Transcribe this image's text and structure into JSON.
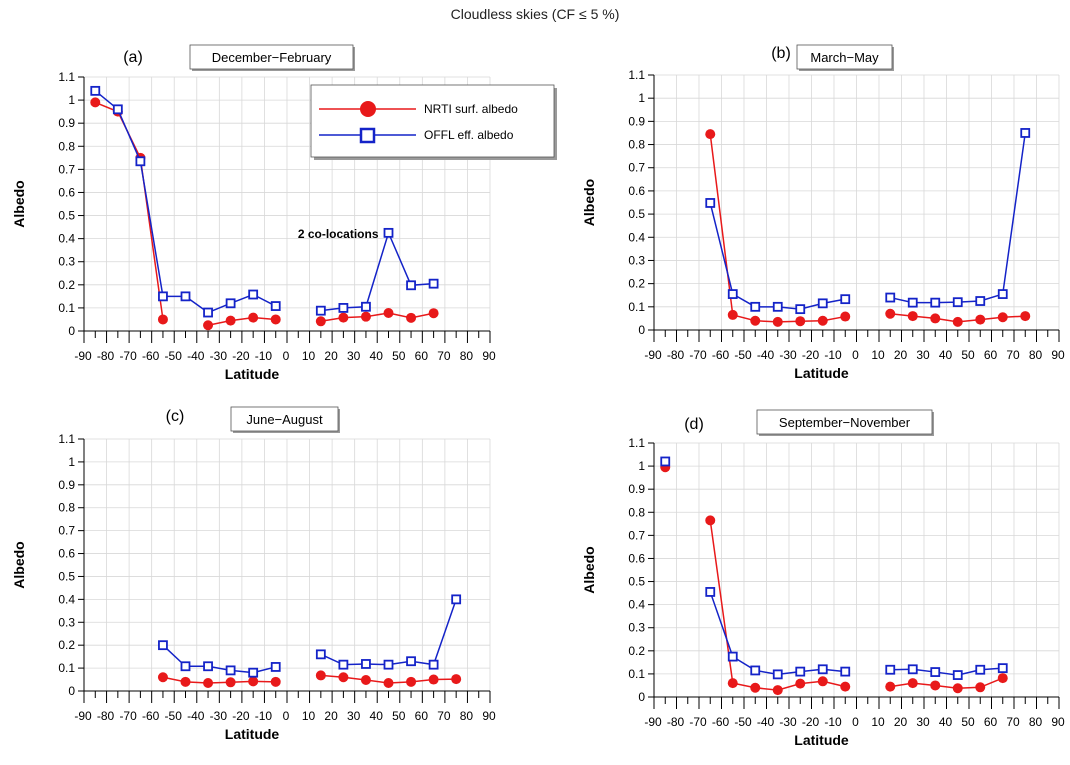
{
  "title": "Cloudless skies (CF ≤ 5 %)",
  "colors": {
    "nrti": "#e8191a",
    "offl": "#1423c8"
  },
  "chart_data": [
    {
      "type": "line",
      "panel_label": "(a)",
      "season": "December−February",
      "xlabel": "Latitude",
      "ylabel": "Albedo",
      "xlim": [
        -90,
        90
      ],
      "ylim": [
        0,
        1.1
      ],
      "xticks": [
        -90,
        -80,
        -70,
        -60,
        -50,
        -40,
        -30,
        -20,
        -10,
        0,
        10,
        20,
        30,
        40,
        50,
        60,
        70,
        80,
        90
      ],
      "yticks": [
        0,
        0.1,
        0.2,
        0.3,
        0.4,
        0.5,
        0.6,
        0.7,
        0.8,
        0.9,
        1,
        1.1
      ],
      "grid": true,
      "legend": {
        "placement": "top-right",
        "entries": [
          "NRTI surf. albedo",
          "OFFL eff. albedo"
        ]
      },
      "annotation": {
        "text": "2 co-locations",
        "x": 45,
        "y": 0.42
      },
      "series": [
        {
          "name": "NRTI surf. albedo",
          "segments": [
            [
              [
                -85,
                0.99
              ],
              [
                -75,
                0.95
              ],
              [
                -65,
                0.75
              ],
              [
                -55,
                0.05
              ]
            ],
            [
              [
                -35,
                0.025
              ],
              [
                -25,
                0.045
              ],
              [
                -15,
                0.058
              ],
              [
                -5,
                0.05
              ]
            ],
            [
              [
                15,
                0.042
              ],
              [
                25,
                0.058
              ],
              [
                35,
                0.062
              ],
              [
                45,
                0.078
              ],
              [
                55,
                0.057
              ],
              [
                65,
                0.077
              ]
            ]
          ]
        },
        {
          "name": "OFFL eff. albedo",
          "segments": [
            [
              [
                -85,
                1.04
              ],
              [
                -75,
                0.96
              ],
              [
                -65,
                0.735
              ],
              [
                -55,
                0.15
              ],
              [
                -45,
                0.15
              ],
              [
                -35,
                0.08
              ],
              [
                -25,
                0.12
              ],
              [
                -15,
                0.158
              ],
              [
                -5,
                0.108
              ]
            ],
            [
              [
                15,
                0.088
              ],
              [
                25,
                0.1
              ],
              [
                35,
                0.105
              ],
              [
                45,
                0.425
              ],
              [
                55,
                0.198
              ],
              [
                65,
                0.205
              ]
            ]
          ]
        }
      ]
    },
    {
      "type": "line",
      "panel_label": "(b)",
      "season": "March−May",
      "xlabel": "Latitude",
      "ylabel": "Albedo",
      "xlim": [
        -90,
        90
      ],
      "ylim": [
        0,
        1.1
      ],
      "xticks": [
        -90,
        -80,
        -70,
        -60,
        -50,
        -40,
        -30,
        -20,
        -10,
        0,
        10,
        20,
        30,
        40,
        50,
        60,
        70,
        80,
        90
      ],
      "yticks": [
        0,
        0.1,
        0.2,
        0.3,
        0.4,
        0.5,
        0.6,
        0.7,
        0.8,
        0.9,
        1,
        1.1
      ],
      "grid": true,
      "series": [
        {
          "name": "NRTI surf. albedo",
          "segments": [
            [
              [
                -65,
                0.845
              ],
              [
                -55,
                0.065
              ],
              [
                -45,
                0.04
              ],
              [
                -35,
                0.035
              ],
              [
                -25,
                0.038
              ],
              [
                -15,
                0.04
              ],
              [
                -5,
                0.058
              ]
            ],
            [
              [
                15,
                0.07
              ],
              [
                25,
                0.06
              ],
              [
                35,
                0.05
              ],
              [
                45,
                0.035
              ],
              [
                55,
                0.045
              ],
              [
                65,
                0.055
              ],
              [
                75,
                0.06
              ]
            ]
          ]
        },
        {
          "name": "OFFL eff. albedo",
          "segments": [
            [
              [
                -65,
                0.548
              ],
              [
                -55,
                0.155
              ],
              [
                -45,
                0.1
              ],
              [
                -35,
                0.1
              ],
              [
                -25,
                0.09
              ],
              [
                -15,
                0.115
              ],
              [
                -5,
                0.133
              ]
            ],
            [
              [
                15,
                0.14
              ],
              [
                25,
                0.118
              ],
              [
                35,
                0.118
              ],
              [
                45,
                0.12
              ],
              [
                55,
                0.125
              ],
              [
                65,
                0.155
              ],
              [
                75,
                0.85
              ]
            ]
          ]
        }
      ]
    },
    {
      "type": "line",
      "panel_label": "(c)",
      "season": "June−August",
      "xlabel": "Latitude",
      "ylabel": "Albedo",
      "xlim": [
        -90,
        90
      ],
      "ylim": [
        0,
        1.1
      ],
      "xticks": [
        -90,
        -80,
        -70,
        -60,
        -50,
        -40,
        -30,
        -20,
        -10,
        0,
        10,
        20,
        30,
        40,
        50,
        60,
        70,
        80,
        90
      ],
      "yticks": [
        0,
        0.1,
        0.2,
        0.3,
        0.4,
        0.5,
        0.6,
        0.7,
        0.8,
        0.9,
        1,
        1.1
      ],
      "grid": true,
      "series": [
        {
          "name": "NRTI surf. albedo",
          "segments": [
            [
              [
                -55,
                0.06
              ],
              [
                -45,
                0.04
              ],
              [
                -35,
                0.035
              ],
              [
                -25,
                0.038
              ],
              [
                -15,
                0.042
              ],
              [
                -5,
                0.04
              ]
            ],
            [
              [
                15,
                0.068
              ],
              [
                25,
                0.06
              ],
              [
                35,
                0.048
              ],
              [
                45,
                0.035
              ],
              [
                55,
                0.04
              ],
              [
                65,
                0.05
              ],
              [
                75,
                0.052
              ]
            ]
          ]
        },
        {
          "name": "OFFL eff. albedo",
          "segments": [
            [
              [
                -55,
                0.2
              ],
              [
                -45,
                0.108
              ],
              [
                -35,
                0.108
              ],
              [
                -25,
                0.09
              ],
              [
                -15,
                0.08
              ],
              [
                -5,
                0.105
              ]
            ],
            [
              [
                15,
                0.16
              ],
              [
                25,
                0.115
              ],
              [
                35,
                0.118
              ],
              [
                45,
                0.115
              ],
              [
                55,
                0.13
              ],
              [
                65,
                0.115
              ],
              [
                75,
                0.4
              ]
            ]
          ]
        }
      ]
    },
    {
      "type": "line",
      "panel_label": "(d)",
      "season": "September−November",
      "xlabel": "Latitude",
      "ylabel": "Albedo",
      "xlim": [
        -90,
        90
      ],
      "ylim": [
        0,
        1.1
      ],
      "xticks": [
        -90,
        -80,
        -70,
        -60,
        -50,
        -40,
        -30,
        -20,
        -10,
        0,
        10,
        20,
        30,
        40,
        50,
        60,
        70,
        80,
        90
      ],
      "yticks": [
        0,
        0.1,
        0.2,
        0.3,
        0.4,
        0.5,
        0.6,
        0.7,
        0.8,
        0.9,
        1,
        1.1
      ],
      "grid": true,
      "series": [
        {
          "name": "NRTI surf. albedo",
          "segments": [
            [
              [
                -85,
                0.995
              ]
            ],
            [
              [
                -65,
                0.765
              ],
              [
                -55,
                0.06
              ],
              [
                -45,
                0.04
              ],
              [
                -35,
                0.03
              ],
              [
                -25,
                0.058
              ],
              [
                -15,
                0.068
              ],
              [
                -5,
                0.045
              ]
            ],
            [
              [
                15,
                0.045
              ],
              [
                25,
                0.06
              ],
              [
                35,
                0.05
              ],
              [
                45,
                0.038
              ],
              [
                55,
                0.042
              ],
              [
                65,
                0.082
              ]
            ]
          ]
        },
        {
          "name": "OFFL eff. albedo",
          "segments": [
            [
              [
                -85,
                1.02
              ]
            ],
            [
              [
                -65,
                0.455
              ],
              [
                -55,
                0.175
              ],
              [
                -45,
                0.115
              ],
              [
                -35,
                0.098
              ],
              [
                -25,
                0.11
              ],
              [
                -15,
                0.12
              ],
              [
                -5,
                0.11
              ]
            ],
            [
              [
                15,
                0.118
              ],
              [
                25,
                0.12
              ],
              [
                35,
                0.108
              ],
              [
                45,
                0.095
              ],
              [
                55,
                0.118
              ],
              [
                65,
                0.125
              ]
            ]
          ]
        }
      ]
    }
  ]
}
